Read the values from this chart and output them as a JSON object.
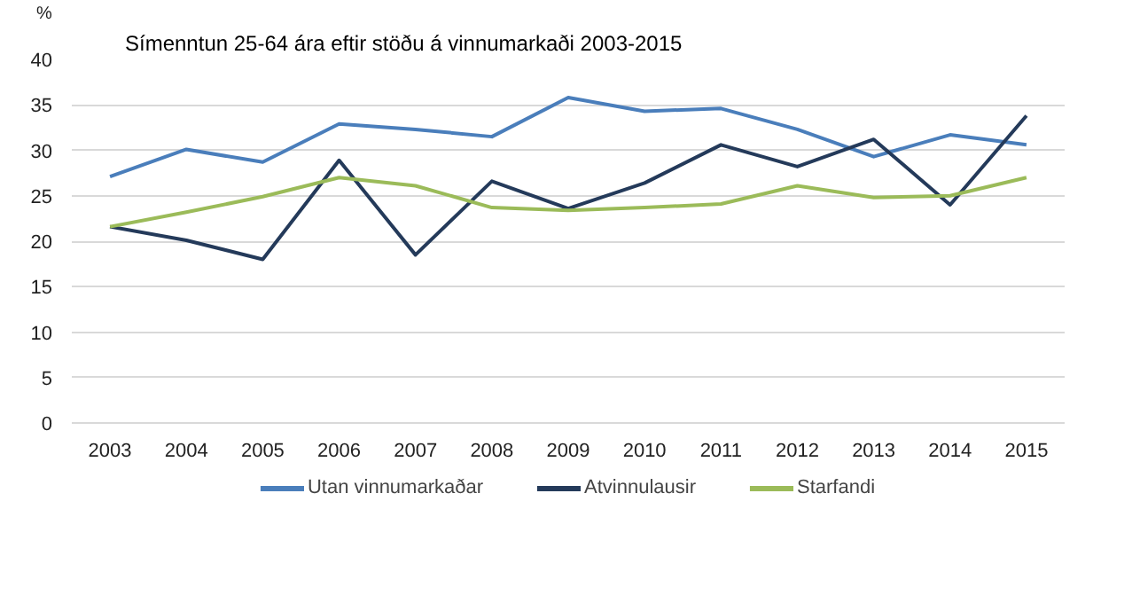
{
  "chart_data": {
    "type": "line",
    "title": "Símenntun 25-64 ára eftir stöðu á vinnumarkaði 2003-2015",
    "ylabel": "%",
    "categories": [
      "2003",
      "2004",
      "2005",
      "2006",
      "2007",
      "2008",
      "2009",
      "2010",
      "2011",
      "2012",
      "2013",
      "2014",
      "2015"
    ],
    "series": [
      {
        "name": "Utan vinnumarkaðar",
        "color": "#4a7ebb",
        "values": [
          27.1,
          30.1,
          28.7,
          32.9,
          32.3,
          31.5,
          35.8,
          34.3,
          34.6,
          32.3,
          29.3,
          31.7,
          30.6
        ]
      },
      {
        "name": "Atvinnulausir",
        "color": "#243a5a",
        "values": [
          21.6,
          20.1,
          18.0,
          28.9,
          18.5,
          26.6,
          23.6,
          26.4,
          30.6,
          28.2,
          31.2,
          24.0,
          33.8
        ]
      },
      {
        "name": "Starfandi",
        "color": "#9bbb59",
        "values": [
          21.6,
          23.2,
          24.9,
          27.0,
          26.1,
          23.7,
          23.4,
          23.7,
          24.1,
          26.1,
          24.8,
          25.0,
          27.0
        ]
      }
    ],
    "ylim": [
      0,
      40
    ],
    "yticks": [
      0,
      5,
      10,
      15,
      20,
      25,
      30,
      35,
      40
    ],
    "grid": "y",
    "legend": "bottom",
    "marker": "none",
    "line_style": "solid"
  }
}
